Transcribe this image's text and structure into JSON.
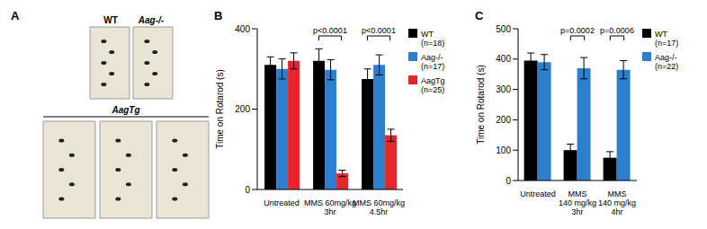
{
  "panel_a": {
    "label": "A",
    "top": [
      "WT",
      "Aag-/-"
    ],
    "bottom": "AagTg"
  },
  "chart_data": [
    {
      "type": "bar",
      "title": "B",
      "y_label": "Time on Rotarod (s)",
      "categories": [
        "Untreated",
        "MMS 60mg/kg\n3hr",
        "MMS 60mg/kg\n4.5hr"
      ],
      "series": [
        {
          "name": "WT\n(n=18)",
          "color": "#000000",
          "values": [
            310,
            320,
            275
          ],
          "errors": [
            20,
            30,
            25
          ]
        },
        {
          "name": "Aag-/-\n(n=17)",
          "color": "#2b7fce",
          "values": [
            300,
            298,
            310
          ],
          "errors": [
            25,
            25,
            25
          ]
        },
        {
          "name": "AagTg\n(n=25)",
          "color": "#e3262b",
          "values": [
            320,
            40,
            135
          ],
          "errors": [
            20,
            8,
            15
          ]
        }
      ],
      "ylim": [
        0,
        400
      ],
      "yticks": [
        0,
        200,
        400
      ],
      "annotations": [
        {
          "text": "p<0.0001",
          "category": "MMS 60mg/kg\n3hr"
        },
        {
          "text": "p<0.0001",
          "category": "MMS 60mg/kg\n4.5hr"
        }
      ]
    },
    {
      "type": "bar",
      "title": "C",
      "y_label": "Time on Rotarod (s)",
      "categories": [
        "Untreated",
        "MMS\n140 mg/kg\n3hr",
        "MMS\n140 mg/kg\n4hr"
      ],
      "series": [
        {
          "name": "WT\n(n=17)",
          "color": "#000000",
          "values": [
            395,
            100,
            75
          ],
          "errors": [
            25,
            20,
            20
          ]
        },
        {
          "name": "Aag-/-\n(n=22)",
          "color": "#2b7fce",
          "values": [
            390,
            370,
            365
          ],
          "errors": [
            25,
            35,
            30
          ]
        }
      ],
      "ylim": [
        0,
        500
      ],
      "yticks": [
        0,
        100,
        200,
        300,
        400,
        500
      ],
      "annotations": [
        {
          "text": "p=0.0002",
          "category": "MMS\n140 mg/kg\n3hr"
        },
        {
          "text": "p=0.0006",
          "category": "MMS\n140 mg/kg\n4hr"
        }
      ]
    }
  ]
}
